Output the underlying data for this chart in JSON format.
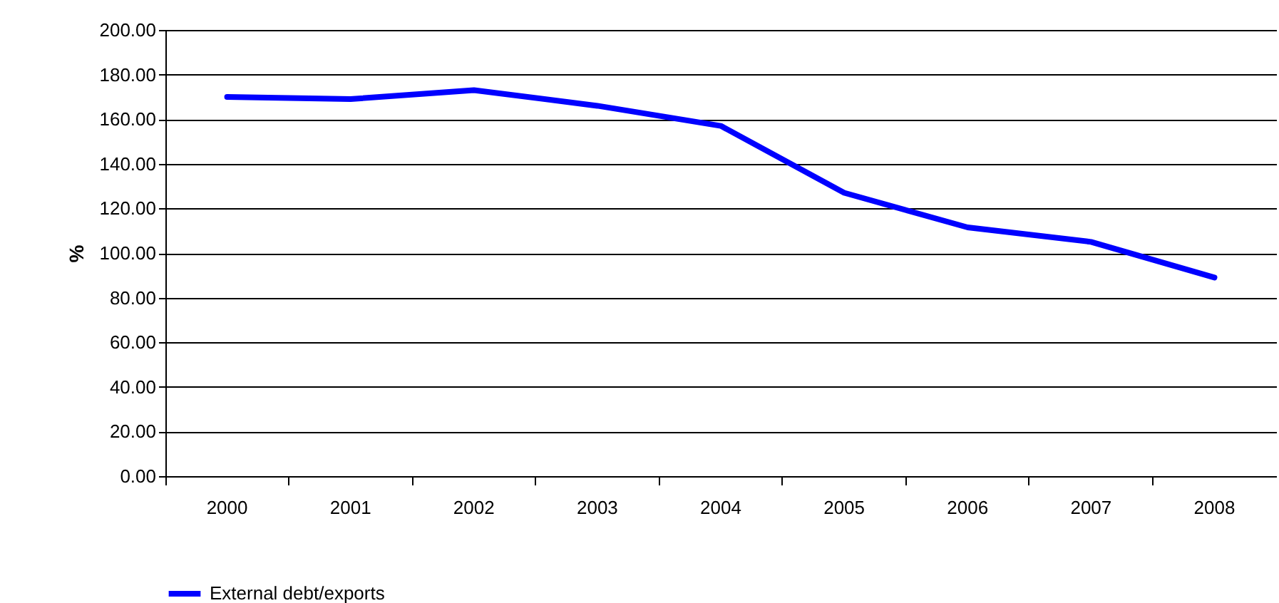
{
  "chart_data": {
    "type": "line",
    "ylabel": "%",
    "categories": [
      "2000",
      "2001",
      "2002",
      "2003",
      "2004",
      "2005",
      "2006",
      "2007",
      "2008"
    ],
    "series": [
      {
        "name": "External debt/exports",
        "color": "#0000ff",
        "values": [
          170,
          169,
          173,
          166,
          157,
          127,
          111.5,
          105,
          89
        ]
      }
    ],
    "ylim": [
      0,
      200
    ],
    "yticks": [
      {
        "value": 0,
        "label": "0.00"
      },
      {
        "value": 20,
        "label": "20.00"
      },
      {
        "value": 40,
        "label": "40.00"
      },
      {
        "value": 60,
        "label": "60.00"
      },
      {
        "value": 80,
        "label": "80.00"
      },
      {
        "value": 100,
        "label": "100.00"
      },
      {
        "value": 120,
        "label": "120.00"
      },
      {
        "value": 140,
        "label": "140.00"
      },
      {
        "value": 160,
        "label": "160.00"
      },
      {
        "value": 180,
        "label": "180.00"
      },
      {
        "value": 200,
        "label": "200.00"
      }
    ],
    "grid": "y",
    "legend": "bottom",
    "marker": "none",
    "line_style": "solid"
  }
}
